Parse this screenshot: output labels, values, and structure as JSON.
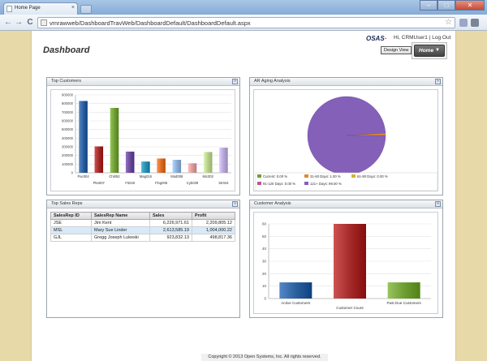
{
  "browser": {
    "tab_title": "Home Page",
    "tab_close": "×",
    "url": "vmrawweb/DashboardTravWeb/DashboardDefault/DashboardDefault.aspx",
    "back": "←",
    "forward": "→",
    "reload": "C",
    "star": "☆",
    "min": "–",
    "max": "□",
    "close": "✕"
  },
  "header": {
    "title": "Dashboard",
    "logo_main": "OSAS",
    "logo_accent": "·",
    "greeting": "Hi, CRMUser1",
    "separator": "|",
    "logout": "Log Out",
    "design_view": "Design View",
    "home_menu": "Home",
    "home_caret": "▼"
  },
  "panels": {
    "top_customers": {
      "title": "Top Customers",
      "btn": "»"
    },
    "ar_aging": {
      "title": "AR Aging Analysis",
      "btn": "»"
    },
    "top_sales_reps": {
      "title": "Top Sales Reps",
      "btn": "»"
    },
    "customer_analysis": {
      "title": "Customer Analysis",
      "btn": "»"
    }
  },
  "chart_data": [
    {
      "type": "bar",
      "title": "Top Customers",
      "categories": [
        "Pac004",
        "Pko007",
        "Chi052",
        "Fit249",
        "Mag016",
        "Flng006",
        "Mod008",
        "Cyb039",
        "Mic002",
        "Str044"
      ],
      "label_rows": [
        "top",
        "bottom",
        "top",
        "bottom",
        "top",
        "bottom",
        "top",
        "bottom",
        "top",
        "bottom"
      ],
      "values": [
        830000,
        305000,
        750000,
        245000,
        130000,
        165000,
        150000,
        110000,
        240000,
        290000
      ],
      "colors": [
        "#2c5f9e",
        "#a52a2a",
        "#6f9e34",
        "#6a4a99",
        "#2a8fb0",
        "#d96b27",
        "#8aaed8",
        "#d99a9a",
        "#b5cf8a",
        "#b5a6d6"
      ],
      "yticks": [
        0,
        100000,
        200000,
        300000,
        400000,
        500000,
        600000,
        700000,
        800000,
        900000
      ],
      "ylim": [
        0,
        900000
      ],
      "grid": true
    },
    {
      "type": "pie",
      "title": "AR Aging Analysis",
      "slices": [
        {
          "label": "Current: 0.00 %",
          "value": 0.0,
          "color": "#6f9e34"
        },
        {
          "label": "31-60 Days: 1.00 %",
          "value": 1.0,
          "color": "#e08a2a"
        },
        {
          "label": "61-90 Days: 0.00 %",
          "value": 0.0,
          "color": "#d4b42a"
        },
        {
          "label": "91-120 Days: 0.00 %",
          "value": 0.0,
          "color": "#c0568a"
        },
        {
          "label": "121+ Days: 99.00 %",
          "value": 99.0,
          "color": "#8460b8"
        }
      ],
      "legend": "bottom"
    },
    {
      "type": "bar",
      "title": "Customer Analysis",
      "categories": [
        "Active Customers",
        "Customer Count",
        "Past Due Customers"
      ],
      "label_rows": [
        "top",
        "bottom",
        "top"
      ],
      "values": [
        13,
        60,
        13
      ],
      "colors": [
        "#2c5f9e",
        "#a52a2a",
        "#6f9e34"
      ],
      "yticks": [
        0,
        10,
        20,
        30,
        40,
        50,
        60
      ],
      "ylim": [
        0,
        60
      ],
      "grid": true
    }
  ],
  "sales_table": {
    "columns": [
      "SalesRep ID",
      "SalesRep Name",
      "Sales",
      "Profit"
    ],
    "rows": [
      [
        "JSE",
        "Jim Kent",
        "6,226,971.61",
        "2,209,805.12"
      ],
      [
        "MSL",
        "Mary Sue Linder",
        "2,613,585.19",
        "1,004,000.22"
      ],
      [
        "GJL",
        "Gregg Joseph Lukeski",
        "923,832.13",
        "498,817.36"
      ]
    ]
  },
  "footer": "Copyright © 2013 Open Systems, Inc. All rights reserved."
}
